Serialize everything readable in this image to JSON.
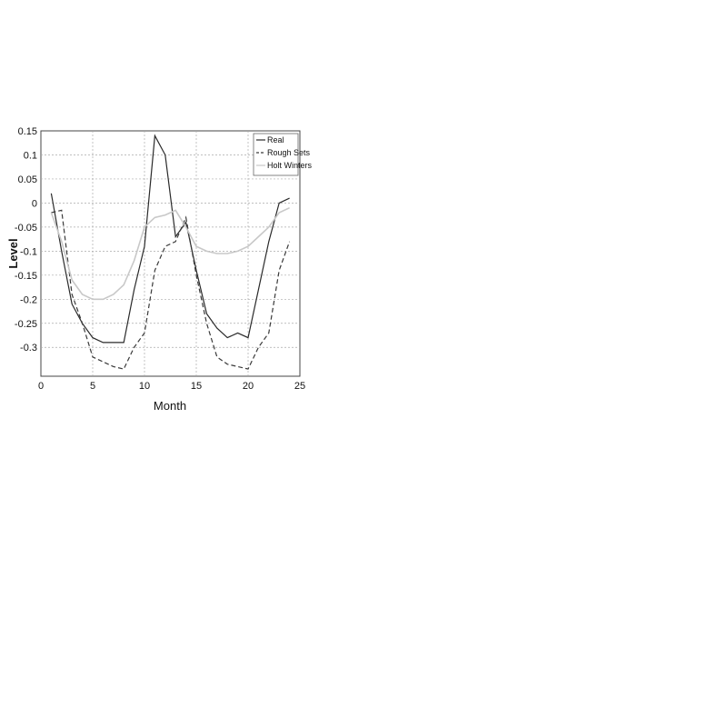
{
  "chart_data": {
    "type": "line",
    "title": "",
    "xlabel": "Month",
    "ylabel": "Level",
    "xlim": [
      0,
      25
    ],
    "ylim": [
      -0.36,
      0.15
    ],
    "xticks": [
      0,
      5,
      10,
      15,
      20,
      25
    ],
    "yticks": [
      0.15,
      0.1,
      0.05,
      0,
      -0.05,
      -0.1,
      -0.15,
      -0.2,
      -0.25,
      -0.3
    ],
    "ytick_labels": [
      "0.15",
      "0.1",
      "0.05",
      "0",
      "-0.05",
      "-0.1",
      "-0.15",
      "-0.2",
      "-0.25",
      "-0.3"
    ],
    "xtick_labels": [
      "0",
      "5",
      "10",
      "15",
      "20",
      "25"
    ],
    "grid": true,
    "legend_position": "top-right",
    "series": [
      {
        "name": "Real",
        "color": "#2a2a2a",
        "dash": "solid",
        "x": [
          1,
          2,
          3,
          4,
          5,
          6,
          7,
          8,
          9,
          10,
          11,
          12,
          13,
          14,
          15,
          16,
          17,
          18,
          19,
          20,
          21,
          22,
          23,
          24
        ],
        "y": [
          0.02,
          -0.1,
          -0.21,
          -0.25,
          -0.28,
          -0.29,
          -0.29,
          -0.29,
          -0.18,
          -0.09,
          0.14,
          0.1,
          -0.07,
          -0.04,
          -0.14,
          -0.23,
          -0.26,
          -0.28,
          -0.27,
          -0.28,
          -0.18,
          -0.08,
          0.0,
          0.01
        ]
      },
      {
        "name": "Rough Sets",
        "color": "#3a3a3a",
        "dash": "dashed",
        "x": [
          1,
          2,
          3,
          4,
          5,
          6,
          7,
          8,
          9,
          10,
          11,
          12,
          13,
          14,
          15,
          16,
          17,
          18,
          19,
          20,
          21,
          22,
          23,
          24
        ],
        "y": [
          -0.02,
          -0.015,
          -0.19,
          -0.25,
          -0.32,
          -0.33,
          -0.34,
          -0.345,
          -0.3,
          -0.27,
          -0.14,
          -0.09,
          -0.08,
          -0.03,
          -0.15,
          -0.25,
          -0.32,
          -0.335,
          -0.34,
          -0.345,
          -0.3,
          -0.27,
          -0.14,
          -0.08
        ]
      },
      {
        "name": "Holt Winters",
        "color": "#c8c8c8",
        "dash": "solid",
        "x": [
          1,
          2,
          3,
          4,
          5,
          6,
          7,
          8,
          9,
          10,
          11,
          12,
          13,
          14,
          15,
          16,
          17,
          18,
          19,
          20,
          21,
          22,
          23,
          24
        ],
        "y": [
          -0.02,
          -0.08,
          -0.16,
          -0.19,
          -0.2,
          -0.2,
          -0.19,
          -0.17,
          -0.12,
          -0.05,
          -0.03,
          -0.025,
          -0.015,
          -0.05,
          -0.09,
          -0.1,
          -0.105,
          -0.105,
          -0.1,
          -0.09,
          -0.07,
          -0.05,
          -0.02,
          -0.01
        ]
      }
    ]
  }
}
